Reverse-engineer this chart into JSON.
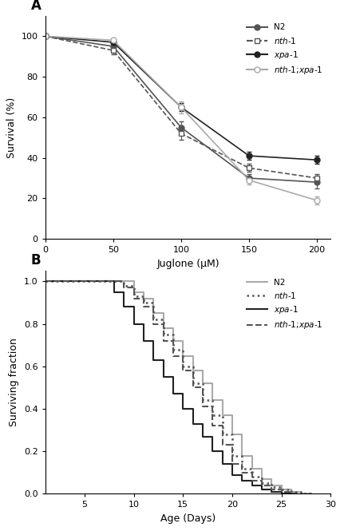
{
  "panel_A": {
    "title": "A",
    "xlabel": "Juglone (μM)",
    "ylabel": "Survival (%)",
    "xlim": [
      0,
      210
    ],
    "ylim": [
      0,
      110
    ],
    "xticks": [
      0,
      50,
      100,
      150,
      200
    ],
    "yticks": [
      0,
      20,
      40,
      60,
      80,
      100
    ],
    "series": [
      {
        "label": "N2",
        "x": [
          0,
          50,
          100,
          150,
          200
        ],
        "y": [
          100,
          95,
          55,
          30,
          28
        ],
        "yerr": [
          0,
          2,
          3,
          2,
          3
        ],
        "color": "#555555",
        "linestyle": "-",
        "marker": "o",
        "markerfacecolor": "#555555",
        "markersize": 5,
        "linewidth": 1.2
      },
      {
        "label": "nth-1",
        "x": [
          0,
          50,
          100,
          150,
          200
        ],
        "y": [
          100,
          93,
          52,
          35,
          30
        ],
        "yerr": [
          0,
          2,
          3,
          2,
          2
        ],
        "color": "#555555",
        "linestyle": "--",
        "marker": "s",
        "markerfacecolor": "#ffffff",
        "markersize": 5,
        "linewidth": 1.2
      },
      {
        "label": "xpa-1",
        "x": [
          0,
          50,
          100,
          150,
          200
        ],
        "y": [
          100,
          97,
          65,
          41,
          39
        ],
        "yerr": [
          0,
          1,
          2,
          2,
          2
        ],
        "color": "#222222",
        "linestyle": "-",
        "marker": "o",
        "markerfacecolor": "#222222",
        "markersize": 5,
        "linewidth": 1.2
      },
      {
        "label": "nth-1;xpa-1",
        "x": [
          0,
          50,
          100,
          150,
          200
        ],
        "y": [
          100,
          98,
          65,
          29,
          19
        ],
        "yerr": [
          0,
          1,
          3,
          2,
          2
        ],
        "color": "#aaaaaa",
        "linestyle": "-",
        "marker": "o",
        "markerfacecolor": "#ffffff",
        "markersize": 5,
        "linewidth": 1.2
      }
    ]
  },
  "panel_B": {
    "title": "B",
    "xlabel": "Age (Days)",
    "ylabel": "Surviving fraction",
    "xlim": [
      1,
      30
    ],
    "ylim": [
      0,
      1.05
    ],
    "xticks": [
      5,
      10,
      15,
      20,
      25,
      30
    ],
    "yticks": [
      0,
      0.2,
      0.4,
      0.6,
      0.8,
      1.0
    ],
    "series": [
      {
        "label": "N2",
        "x": [
          1,
          5,
          6,
          7,
          8,
          9,
          10,
          11,
          12,
          13,
          14,
          15,
          16,
          17,
          18,
          19,
          20,
          21,
          22,
          23,
          24,
          25,
          26,
          27,
          28
        ],
        "y": [
          1,
          1,
          1,
          1,
          1,
          1,
          0.95,
          0.92,
          0.85,
          0.78,
          0.72,
          0.65,
          0.58,
          0.52,
          0.44,
          0.37,
          0.28,
          0.18,
          0.12,
          0.07,
          0.04,
          0.02,
          0.01,
          0.0,
          0.0
        ],
        "color": "#aaaaaa",
        "linestyle": "-",
        "linewidth": 1.5
      },
      {
        "label": "nth-1",
        "x": [
          1,
          5,
          6,
          7,
          8,
          9,
          10,
          11,
          12,
          13,
          14,
          15,
          16,
          17,
          18,
          19,
          20,
          21,
          22,
          23,
          24,
          25,
          26,
          27,
          28
        ],
        "y": [
          1,
          1,
          1,
          1,
          1,
          0.98,
          0.93,
          0.9,
          0.82,
          0.75,
          0.68,
          0.6,
          0.52,
          0.44,
          0.37,
          0.28,
          0.18,
          0.12,
          0.08,
          0.05,
          0.03,
          0.02,
          0.01,
          0.0,
          0.0
        ],
        "color": "#555555",
        "linestyle": ":",
        "linewidth": 1.8
      },
      {
        "label": "xpa-1",
        "x": [
          1,
          5,
          6,
          7,
          8,
          9,
          10,
          11,
          12,
          13,
          14,
          15,
          16,
          17,
          18,
          19,
          20,
          21,
          22,
          23,
          24,
          25,
          26
        ],
        "y": [
          1,
          1,
          1,
          1,
          0.95,
          0.88,
          0.8,
          0.72,
          0.63,
          0.55,
          0.47,
          0.4,
          0.33,
          0.27,
          0.2,
          0.14,
          0.09,
          0.06,
          0.04,
          0.02,
          0.01,
          0.0,
          0.0
        ],
        "color": "#222222",
        "linestyle": "-",
        "linewidth": 1.5
      },
      {
        "label": "nth-1;xpa-1",
        "x": [
          1,
          5,
          6,
          7,
          8,
          9,
          10,
          11,
          12,
          13,
          14,
          15,
          16,
          17,
          18,
          19,
          20,
          21,
          22,
          23,
          24,
          25,
          26,
          27
        ],
        "y": [
          1,
          1,
          1,
          1,
          1,
          0.97,
          0.92,
          0.88,
          0.8,
          0.72,
          0.65,
          0.58,
          0.5,
          0.41,
          0.32,
          0.23,
          0.14,
          0.1,
          0.06,
          0.04,
          0.02,
          0.01,
          0.0,
          0.0
        ],
        "color": "#555555",
        "linestyle": "--",
        "linewidth": 1.5
      }
    ]
  }
}
